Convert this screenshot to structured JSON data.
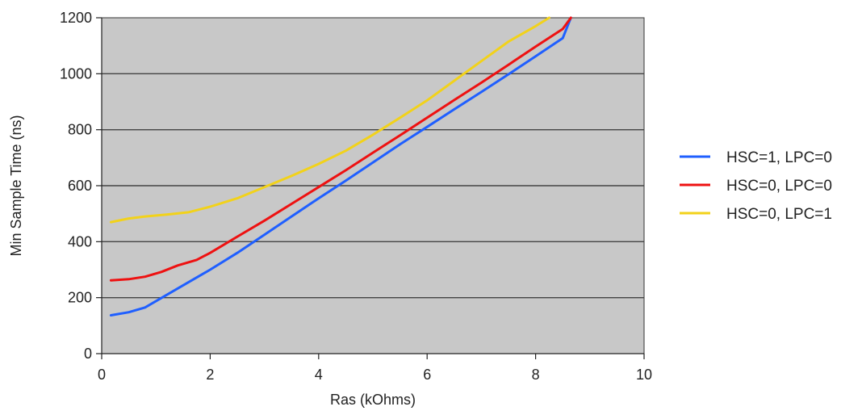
{
  "chart_data": {
    "type": "line",
    "title": "",
    "xlabel": "Ras (kOhms)",
    "ylabel": "Min Sample Time (ns)",
    "xlim": [
      0,
      10
    ],
    "ylim": [
      0,
      1200
    ],
    "xticks": [
      "0",
      "2",
      "4",
      "6",
      "8",
      "10"
    ],
    "yticks": [
      "0",
      "200",
      "400",
      "600",
      "800",
      "1000",
      "1200"
    ],
    "grid": "horizontal",
    "legend_position": "right",
    "plot_background": "#c8c8c8",
    "series": [
      {
        "name": "HSC=1, LPC=0",
        "color": "#1f5fff",
        "x": [
          0.17,
          0.5,
          0.8,
          1.2,
          1.6,
          2.0,
          2.5,
          3.0,
          3.5,
          4.0,
          4.5,
          5.0,
          5.5,
          6.0,
          6.5,
          7.0,
          7.5,
          8.0,
          8.5,
          8.65
        ],
        "y": [
          137,
          148,
          165,
          210,
          255,
          300,
          360,
          425,
          490,
          555,
          618,
          683,
          748,
          810,
          873,
          935,
          998,
          1062,
          1127,
          1200
        ]
      },
      {
        "name": "HSC=0, LPC=0",
        "color": "#ee1111",
        "x": [
          0.17,
          0.5,
          0.8,
          1.1,
          1.4,
          1.75,
          2.0,
          2.5,
          3.0,
          3.5,
          4.0,
          4.5,
          5.0,
          5.5,
          6.0,
          6.5,
          7.0,
          7.5,
          8.0,
          8.5,
          8.65
        ],
        "y": [
          262,
          266,
          275,
          292,
          315,
          335,
          360,
          418,
          475,
          535,
          595,
          655,
          718,
          780,
          843,
          906,
          968,
          1032,
          1097,
          1160,
          1200
        ]
      },
      {
        "name": "HSC=0, LPC=1",
        "color": "#f2d21a",
        "x": [
          0.17,
          0.5,
          0.8,
          1.2,
          1.6,
          2.0,
          2.5,
          3.0,
          3.5,
          4.0,
          4.5,
          5.0,
          5.5,
          6.0,
          6.5,
          7.0,
          7.5,
          8.0,
          8.25
        ],
        "y": [
          470,
          483,
          490,
          497,
          505,
          525,
          555,
          595,
          635,
          678,
          725,
          782,
          843,
          905,
          975,
          1045,
          1115,
          1170,
          1200
        ]
      }
    ]
  }
}
